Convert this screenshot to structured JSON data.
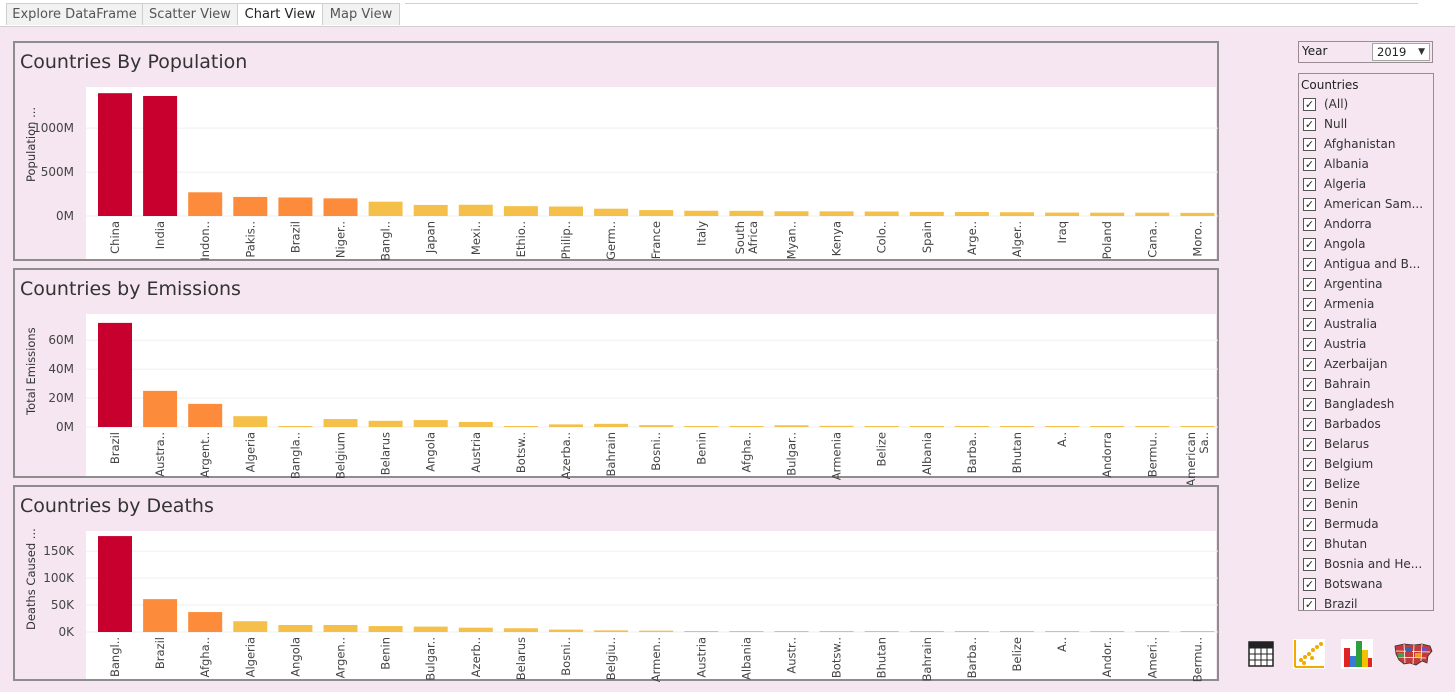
{
  "tabs": [
    {
      "label": "Explore DataFrame",
      "active": false
    },
    {
      "label": "Scatter View",
      "active": false
    },
    {
      "label": "Chart View",
      "active": true
    },
    {
      "label": "Map View",
      "active": false
    }
  ],
  "filters": {
    "year_label": "Year",
    "year_value": "2019",
    "countries_label": "Countries",
    "countries": [
      "(All)",
      "Null",
      "Afghanistan",
      "Albania",
      "Algeria",
      "American Sam...",
      "Andorra",
      "Angola",
      "Antigua and B...",
      "Argentina",
      "Armenia",
      "Australia",
      "Austria",
      "Azerbaijan",
      "Bahrain",
      "Bangladesh",
      "Barbados",
      "Belarus",
      "Belgium",
      "Belize",
      "Benin",
      "Bermuda",
      "Bhutan",
      "Bosnia and He...",
      "Botswana",
      "Brazil"
    ]
  },
  "icons": [
    "crosstab-icon",
    "scatter-chart-icon",
    "bar-chart-icon",
    "usa-map-icon"
  ],
  "colors": {
    "background": "#f5e6f1",
    "high": "#c8002e",
    "mid": "#fc8c3b",
    "low": "#f5c04a"
  },
  "chart_data": [
    {
      "type": "bar",
      "title": "Countries By Population",
      "ylabel": "Population ...",
      "yticks": [
        "1000M",
        "500M",
        "0M"
      ],
      "ytick_values": [
        1000,
        500,
        0
      ],
      "ylim": [
        0,
        1400
      ],
      "categories": [
        [
          "China"
        ],
        [
          "India"
        ],
        [
          "Indon.."
        ],
        [
          "Pakis.."
        ],
        [
          "Brazil"
        ],
        [
          "Niger.."
        ],
        [
          "Bangl.."
        ],
        [
          "Japan"
        ],
        [
          "Mexi.."
        ],
        [
          "Ethio.."
        ],
        [
          "Philip.."
        ],
        [
          "Germ.."
        ],
        [
          "France"
        ],
        [
          "Italy"
        ],
        [
          "South",
          "Africa"
        ],
        [
          "Myan.."
        ],
        [
          "Kenya"
        ],
        [
          "Colo.."
        ],
        [
          "Spain"
        ],
        [
          "Arge.."
        ],
        [
          "Alger.."
        ],
        [
          "Iraq"
        ],
        [
          "Poland"
        ],
        [
          "Cana.."
        ],
        [
          "Moro.."
        ]
      ],
      "values": [
        1398,
        1366,
        270,
        217,
        211,
        201,
        163,
        126,
        128,
        112,
        108,
        83,
        67,
        60,
        59,
        54,
        53,
        51,
        47,
        45,
        43,
        39,
        38,
        38,
        36
      ]
    },
    {
      "type": "bar",
      "title": "Countries by Emissions",
      "ylabel": "Total Emissions",
      "yticks": [
        "60M",
        "40M",
        "20M",
        "0M"
      ],
      "ytick_values": [
        60,
        40,
        20,
        0
      ],
      "ylim": [
        0,
        74
      ],
      "categories": [
        [
          "Brazil"
        ],
        [
          "Austra.."
        ],
        [
          "Argent.."
        ],
        [
          "Algeria"
        ],
        [
          "Bangla.."
        ],
        [
          "Belgium"
        ],
        [
          "Belarus"
        ],
        [
          "Angola"
        ],
        [
          "Austria"
        ],
        [
          "Botsw.."
        ],
        [
          "Azerba.."
        ],
        [
          "Bahrain"
        ],
        [
          "Bosni.."
        ],
        [
          "Benin"
        ],
        [
          "Afgha.."
        ],
        [
          "Bulgar.."
        ],
        [
          "Armenia"
        ],
        [
          "Belize"
        ],
        [
          "Albania"
        ],
        [
          "Barba.."
        ],
        [
          "Bhutan"
        ],
        [
          "A.."
        ],
        [
          "Andorra"
        ],
        [
          "Bermu.."
        ],
        [
          "American",
          "Sa.."
        ]
      ],
      "values": [
        72,
        25,
        16,
        7.5,
        0.2,
        5.5,
        4.3,
        4.8,
        3.5,
        0.3,
        1.8,
        2.2,
        1.3,
        0.6,
        0.5,
        1.2,
        0.8,
        0.1,
        0.2,
        0.1,
        0.1,
        0.05,
        0.05,
        0.05,
        0.05
      ]
    },
    {
      "type": "bar",
      "title": "Countries by Deaths",
      "ylabel": "Deaths Caused ...",
      "yticks": [
        "150K",
        "100K",
        "50K",
        "0K"
      ],
      "ytick_values": [
        150,
        100,
        50,
        0
      ],
      "ylim": [
        0,
        180
      ],
      "categories": [
        [
          "Bangl.."
        ],
        [
          "Brazil"
        ],
        [
          "Afgha.."
        ],
        [
          "Algeria"
        ],
        [
          "Angola"
        ],
        [
          "Argen.."
        ],
        [
          "Benin"
        ],
        [
          "Bulgar.."
        ],
        [
          "Azerb.."
        ],
        [
          "Belarus"
        ],
        [
          "Bosni.."
        ],
        [
          "Belgiu.."
        ],
        [
          "Armen.."
        ],
        [
          "Austria"
        ],
        [
          "Albania"
        ],
        [
          "Austr.."
        ],
        [
          "Botsw.."
        ],
        [
          "Bhutan"
        ],
        [
          "Bahrain"
        ],
        [
          "Barba.."
        ],
        [
          "Belize"
        ],
        [
          "A.."
        ],
        [
          "Andor.."
        ],
        [
          "Ameri.."
        ],
        [
          "Bermu.."
        ]
      ],
      "values": [
        178,
        61,
        37,
        20,
        13,
        13,
        11,
        10,
        8,
        7,
        4.5,
        3,
        2.5,
        1.5,
        1.5,
        1.2,
        1,
        0.3,
        0.3,
        0.1,
        0.1,
        0.05,
        0.05,
        0.05,
        0.05
      ]
    }
  ]
}
